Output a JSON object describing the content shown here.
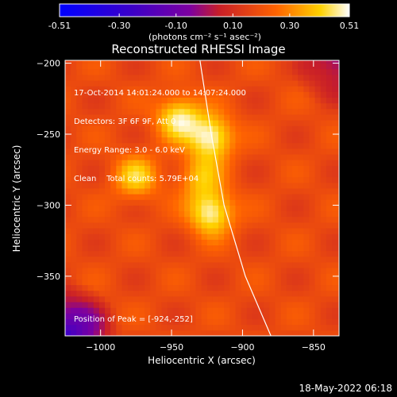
{
  "colorbar": {
    "tick_labels": [
      "-0.51",
      "-0.30",
      "-0.10",
      "0.10",
      "0.30",
      "0.51"
    ],
    "tick_values": [
      -0.51,
      -0.3,
      -0.1,
      0.1,
      0.3,
      0.51
    ],
    "range": [
      -0.51,
      0.51
    ],
    "colors": [
      "#0000ff",
      "#3c00c8",
      "#7d00a0",
      "#c81e28",
      "#ff6400",
      "#ffd200",
      "#ffffff"
    ]
  },
  "chart_data": {
    "type": "heatmap",
    "title": "Reconstructed RHESSI Image",
    "units": "(photons cm⁻² s⁻¹ asec⁻²)",
    "xlabel": "Heliocentric X (arcsec)",
    "ylabel": "Heliocentric Y (arcsec)",
    "xlim": [
      -1025,
      -832
    ],
    "ylim": [
      -392,
      -198
    ],
    "x_ticks": [
      -1000,
      -950,
      -900,
      -850
    ],
    "x_tick_labels": [
      "−1000",
      "−950",
      "−900",
      "−850"
    ],
    "y_ticks": [
      -200,
      -250,
      -300,
      -350
    ],
    "y_tick_labels": [
      "−200",
      "−250",
      "−300",
      "−350"
    ],
    "sources": [
      {
        "x": -945,
        "y": -238,
        "peak": 0.47
      },
      {
        "x": -922,
        "y": -252,
        "peak": 0.51
      },
      {
        "x": -975,
        "y": -280,
        "peak": 0.4
      },
      {
        "x": -922,
        "y": -305,
        "peak": 0.5
      },
      {
        "x": -930,
        "y": -280,
        "peak": 0.36
      }
    ],
    "background_level": 0.18,
    "limb_curve": [
      {
        "x": -930,
        "y": -198
      },
      {
        "x": -922,
        "y": -250
      },
      {
        "x": -913,
        "y": -300
      },
      {
        "x": -898,
        "y": -350
      },
      {
        "x": -880,
        "y": -392
      }
    ],
    "annotations": {
      "time_range": "17-Oct-2014 14:01:24.000 to 14:07:24.000",
      "detectors": "Detectors: 3F 6F 9F, Att 0",
      "energy": "Energy Range: 3.0 - 6.0 keV",
      "clean": "Clean    Total counts: 5.79E+04",
      "peak": "Position of Peak = [-924,-252]"
    }
  },
  "footer": {
    "date": "18-May-2022 06:18"
  }
}
